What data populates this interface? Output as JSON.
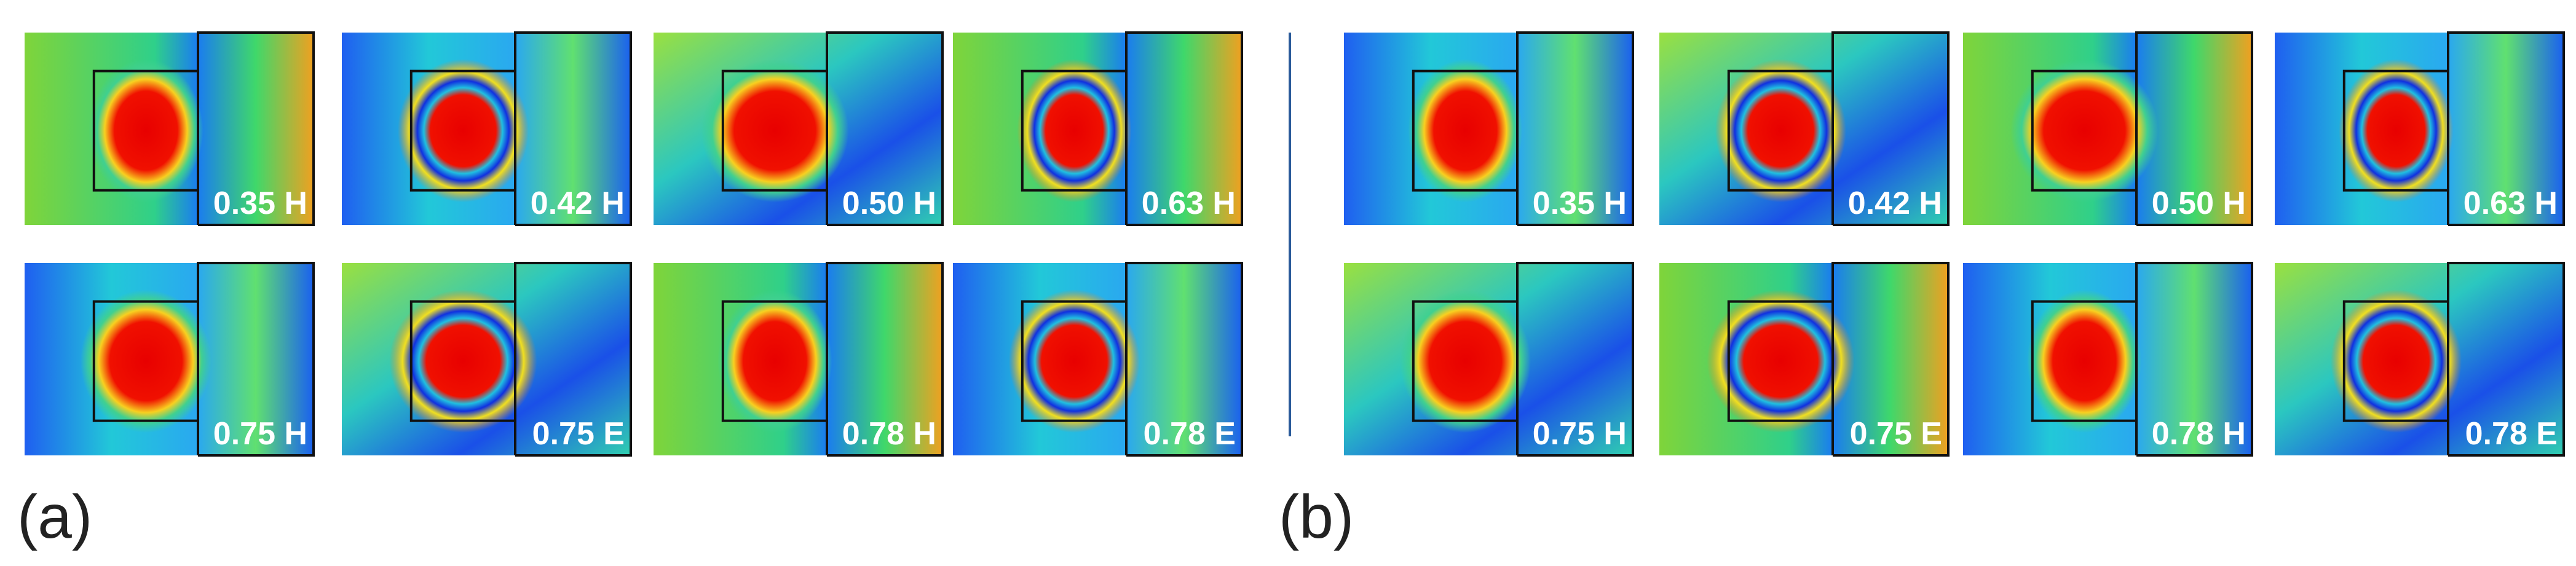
{
  "panels": [
    {
      "label": "(a)",
      "tiles": [
        {
          "label": "0.35 H"
        },
        {
          "label": "0.42 H"
        },
        {
          "label": "0.50 H"
        },
        {
          "label": "0.63 H"
        },
        {
          "label": "0.75 H"
        },
        {
          "label": "0.75 E"
        },
        {
          "label": "0.78 H"
        },
        {
          "label": "0.78 E"
        }
      ]
    },
    {
      "label": "(b)",
      "tiles": [
        {
          "label": "0.35 H"
        },
        {
          "label": "0.42 H"
        },
        {
          "label": "0.50 H"
        },
        {
          "label": "0.63 H"
        },
        {
          "label": "0.75 H"
        },
        {
          "label": "0.75 E"
        },
        {
          "label": "0.78 H"
        },
        {
          "label": "0.78 E"
        }
      ]
    }
  ]
}
